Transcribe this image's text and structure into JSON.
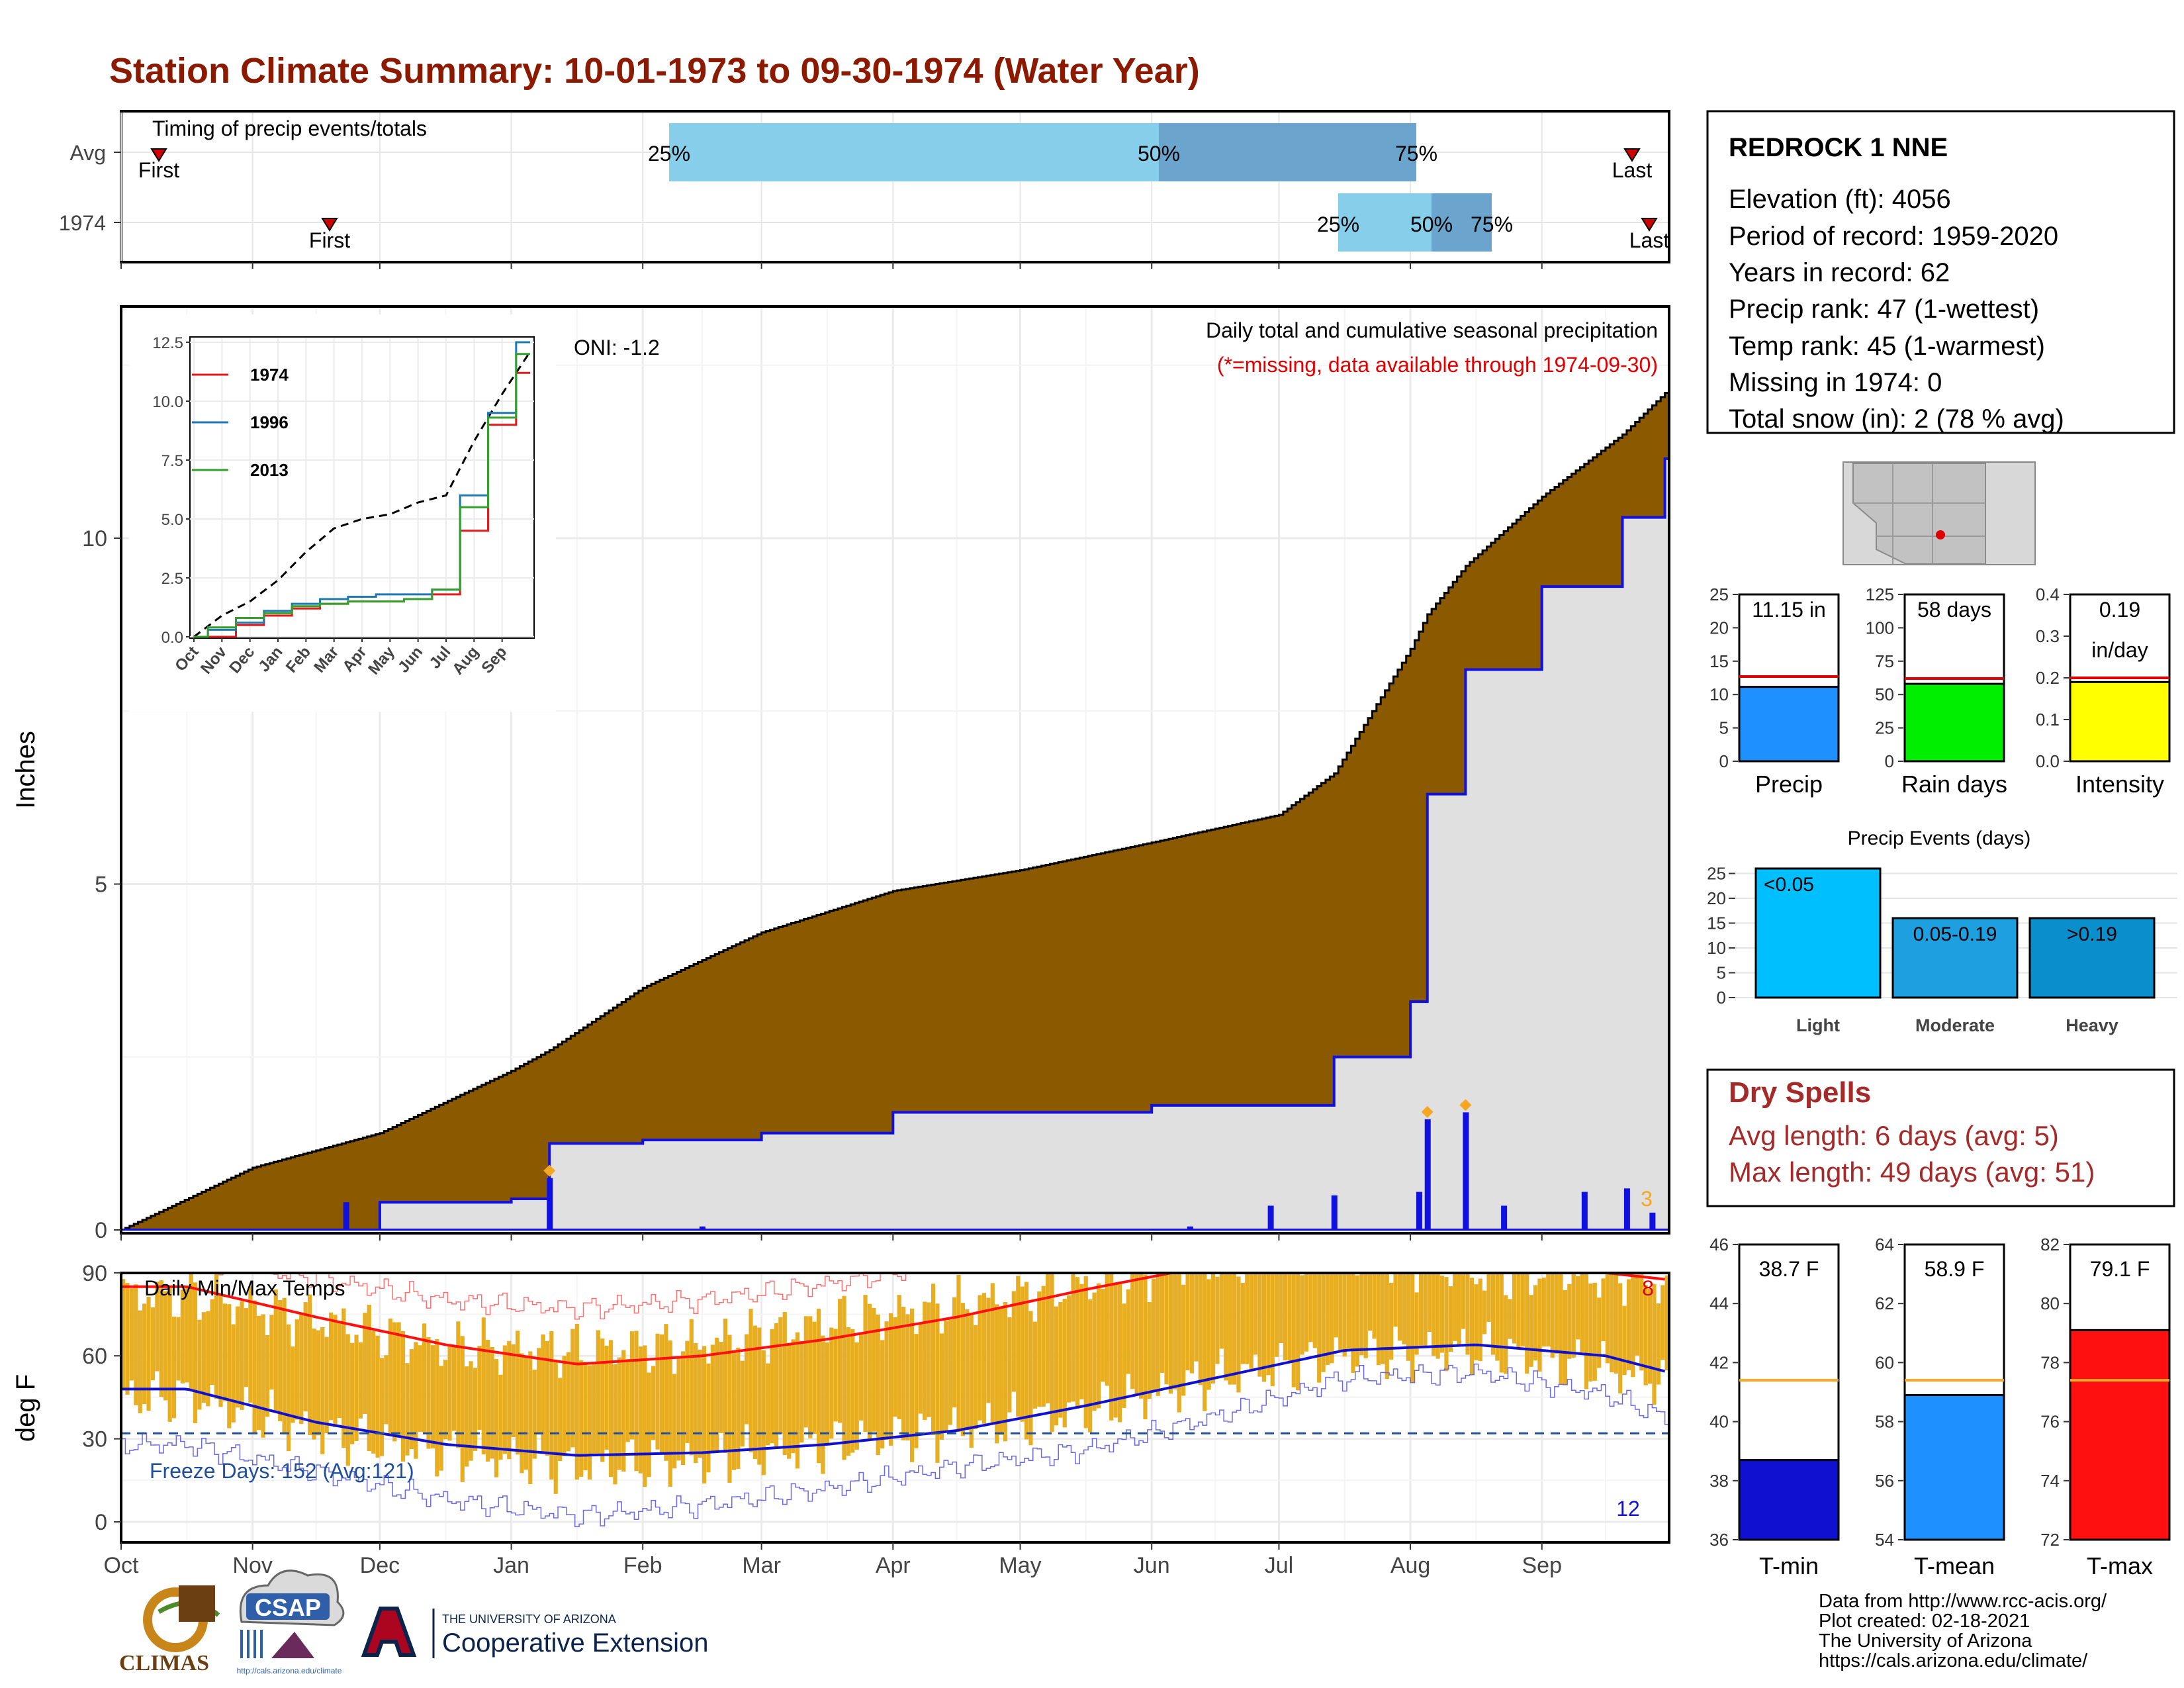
{
  "title": "Station Climate Summary: 10-01-1973 to 09-30-1974 (Water Year)",
  "colors": {
    "title": "#8B1A00",
    "avg_cum": "#8B5A00",
    "obs_cum": "#E0E0E0",
    "obs_line": "#1010E0",
    "temp_bar": "#E8AE22",
    "tmax_line": "#FF1010",
    "tmin_line": "#1010D0",
    "precip_bar": "#1E90FF",
    "rain_bar": "#00EE00",
    "intensity_bar": "#FFFF00",
    "light": "#00BFFF",
    "moderate": "#1EA0E0",
    "heavy": "#0A8ECC",
    "iqr_light": "#87CEEB",
    "iqr_dark": "#6BA4CC",
    "dry_text": "#A52A2A",
    "avg_line": "#F5A623"
  },
  "timing": {
    "label": "Timing of precip events/totals",
    "rows": [
      "Avg",
      "1974"
    ],
    "first_label": "First",
    "last_label": "Last",
    "avg": {
      "first": "10-03",
      "p25": "02-08",
      "p50": "06-01",
      "p75": "08-01",
      "last": "09-23"
    },
    "y1974": {
      "first": "11-22",
      "p25": "07-14",
      "p50": "08-05",
      "p75": "08-19",
      "last": "09-27"
    },
    "pct_labels": [
      "25%",
      "50%",
      "75%"
    ]
  },
  "precip": {
    "ylabel": "Inches",
    "annotation_title": "Daily total and cumulative seasonal precipitation",
    "annotation_missing": "(*=missing, data available through 1974-09-30)",
    "oni": "ONI: -1.2",
    "max_days_label": "3",
    "yticks": [
      "0",
      "5",
      "10"
    ]
  },
  "inset": {
    "legend": [
      "1974",
      "1996",
      "2013"
    ],
    "yticks": [
      "0.0",
      "2.5",
      "5.0",
      "7.5",
      "10.0",
      "12.5"
    ],
    "xticks": [
      "Oct",
      "Nov",
      "Dec",
      "Jan",
      "Feb",
      "Mar",
      "Apr",
      "May",
      "Jun",
      "Jul",
      "Aug",
      "Sep"
    ]
  },
  "temps": {
    "label": "Daily Min/Max Temps",
    "ylabel": "deg F",
    "freeze_label": "Freeze Days: 152 (Avg:121)",
    "record_high_count": "8",
    "record_low_count": "12",
    "yticks": [
      "0",
      "30",
      "60",
      "90"
    ]
  },
  "months": [
    "Oct",
    "Nov",
    "Dec",
    "Jan",
    "Feb",
    "Mar",
    "Apr",
    "May",
    "Jun",
    "Jul",
    "Aug",
    "Sep"
  ],
  "station": {
    "name": "REDROCK 1 NNE",
    "lines": [
      "Elevation (ft): 4056",
      "Period of record: 1959-2020",
      "Years in record: 62",
      "Precip rank: 47 (1-wettest)",
      "Temp rank: 45 (1-warmest)",
      "Missing in 1974: 0",
      "Total snow (in): 2 (78 % avg)"
    ]
  },
  "small_bars": [
    {
      "name": "Precip",
      "value": 11.15,
      "avg": 12.7,
      "ylim": [
        0,
        25
      ],
      "yticks": [
        "0",
        "5",
        "10",
        "15",
        "20",
        "25"
      ],
      "label_top": "11.15 in",
      "label_bottom": ""
    },
    {
      "name": "Rain days",
      "value": 58,
      "avg": 62,
      "ylim": [
        0,
        125
      ],
      "yticks": [
        "0",
        "25",
        "50",
        "75",
        "100",
        "125"
      ],
      "label_top": "58 days",
      "label_bottom": ""
    },
    {
      "name": "Intensity",
      "value": 0.19,
      "avg": 0.2,
      "ylim": [
        0,
        0.4
      ],
      "yticks": [
        "0.0",
        "0.1",
        "0.2",
        "0.3",
        "0.4"
      ],
      "label_top": "0.19",
      "label_bottom": "in/day"
    }
  ],
  "events": {
    "title": "Precip Events (days)",
    "categories": [
      "Light",
      "Moderate",
      "Heavy"
    ],
    "bin_labels": [
      "<0.05",
      "0.05-0.19",
      ">0.19"
    ],
    "values": [
      26,
      16,
      16
    ],
    "yticks": [
      "0",
      "5",
      "10",
      "15",
      "20",
      "25"
    ]
  },
  "dry_spells": {
    "title": "Dry Spells",
    "avg_line": "Avg length: 6 days (avg: 5)",
    "max_line": "Max length: 49 days (avg: 51)"
  },
  "temp_bars": [
    {
      "name": "T-min",
      "value": 38.7,
      "avg": 41.4,
      "ylim": [
        36,
        46
      ],
      "yticks": [
        "36",
        "38",
        "40",
        "42",
        "44",
        "46"
      ],
      "label": "38.7 F"
    },
    {
      "name": "T-mean",
      "value": 58.9,
      "avg": 59.4,
      "ylim": [
        54,
        64
      ],
      "yticks": [
        "54",
        "56",
        "58",
        "60",
        "62",
        "64"
      ],
      "label": "58.9 F"
    },
    {
      "name": "T-max",
      "value": 79.1,
      "avg": 77.4,
      "ylim": [
        72,
        82
      ],
      "yticks": [
        "72",
        "74",
        "76",
        "78",
        "80",
        "82"
      ],
      "label": "79.1 F"
    }
  ],
  "credits": [
    "Data from http://www.rcc-acis.org/",
    "Plot created: 02-18-2021",
    "The University of Arizona",
    "https://cals.arizona.edu/climate/"
  ],
  "logos": {
    "climas": "CLIMAS",
    "csap": "CSAP",
    "csap_url": "http://cals.arizona.edu/climate",
    "ua_small": "THE UNIVERSITY OF ARIZONA",
    "ua_big": "Cooperative Extension"
  },
  "chart_data": [
    {
      "type": "area",
      "title": "Daily total and cumulative seasonal precipitation",
      "ylabel": "Inches",
      "ylim": [
        0,
        12.2
      ],
      "x": [
        "10-01",
        "11-01",
        "12-01",
        "01-01",
        "01-10",
        "02-01",
        "03-01",
        "04-01",
        "05-01",
        "06-01",
        "07-01",
        "07-14",
        "08-01",
        "08-05",
        "08-14",
        "09-01",
        "09-20",
        "09-30"
      ],
      "series": [
        {
          "name": "Avg cumulative",
          "values": [
            0.0,
            0.9,
            1.4,
            2.3,
            2.6,
            3.5,
            4.3,
            4.9,
            5.2,
            5.6,
            6.0,
            6.6,
            8.4,
            8.9,
            9.6,
            10.6,
            11.5,
            12.1
          ]
        },
        {
          "name": "1974 cumulative",
          "values": [
            0.0,
            0.0,
            0.4,
            0.45,
            1.25,
            1.3,
            1.4,
            1.7,
            1.7,
            1.8,
            1.8,
            2.5,
            3.3,
            6.3,
            8.1,
            9.3,
            10.3,
            11.15
          ]
        }
      ],
      "daily_events": {
        "x": [
          "11-23",
          "01-10",
          "02-15",
          "06-10",
          "06-29",
          "07-14",
          "08-03",
          "08-05",
          "08-14",
          "08-23",
          "09-11",
          "09-21",
          "09-27"
        ],
        "values": [
          0.4,
          0.75,
          0.05,
          0.05,
          0.35,
          0.5,
          0.55,
          1.6,
          1.7,
          0.35,
          0.55,
          0.6,
          0.25
        ]
      }
    },
    {
      "type": "line",
      "title": "",
      "ylim": [
        0,
        13
      ],
      "categories": [
        "Oct",
        "Nov",
        "Dec",
        "Jan",
        "Feb",
        "Mar",
        "Apr",
        "May",
        "Jun",
        "Jul",
        "Aug",
        "Sep",
        "Oct"
      ],
      "series": [
        {
          "name": "Average",
          "values": [
            0,
            0.9,
            1.5,
            2.4,
            3.6,
            4.6,
            5.0,
            5.2,
            5.7,
            6.0,
            8.3,
            10.3,
            12.1
          ]
        },
        {
          "name": "1974",
          "values": [
            0,
            0,
            0.5,
            0.9,
            1.2,
            1.4,
            1.5,
            1.5,
            1.6,
            1.8,
            4.5,
            9.0,
            11.2
          ]
        },
        {
          "name": "1996",
          "values": [
            0,
            0.3,
            0.6,
            1.1,
            1.4,
            1.6,
            1.7,
            1.8,
            1.8,
            2.0,
            6.0,
            9.5,
            12.5
          ]
        },
        {
          "name": "2013",
          "values": [
            0,
            0.4,
            0.8,
            1.0,
            1.3,
            1.4,
            1.5,
            1.5,
            1.6,
            2.0,
            5.5,
            9.3,
            12.0
          ]
        }
      ]
    },
    {
      "type": "line",
      "title": "Daily Min/Max Temps",
      "ylabel": "deg F",
      "ylim": [
        -5,
        110
      ],
      "categories": [
        "Oct",
        "Nov",
        "Dec",
        "Jan",
        "Feb",
        "Mar",
        "Apr",
        "May",
        "Jun",
        "Jul",
        "Aug",
        "Sep",
        "Oct"
      ],
      "series": [
        {
          "name": "Avg max",
          "values": [
            85,
            74,
            64,
            57,
            60,
            66,
            74,
            84,
            93,
            97,
            93,
            90,
            85
          ]
        },
        {
          "name": "Avg min",
          "values": [
            48,
            36,
            28,
            24,
            25,
            28,
            33,
            42,
            52,
            62,
            64,
            60,
            48
          ]
        },
        {
          "name": "Record max",
          "values": [
            96,
            88,
            80,
            77,
            80,
            86,
            94,
            101,
            107,
            107,
            103,
            101,
            96
          ]
        },
        {
          "name": "Record min",
          "values": [
            28,
            18,
            8,
            2,
            6,
            12,
            20,
            26,
            38,
            52,
            54,
            46,
            28
          ]
        },
        {
          "name": "1974 max",
          "values": [
            82,
            73,
            63,
            62,
            64,
            72,
            78,
            86,
            95,
            98,
            90,
            90,
            80
          ]
        },
        {
          "name": "1974 min",
          "values": [
            45,
            32,
            25,
            20,
            22,
            28,
            33,
            40,
            52,
            60,
            62,
            55,
            45
          ]
        }
      ],
      "freeze_line": 32
    }
  ]
}
